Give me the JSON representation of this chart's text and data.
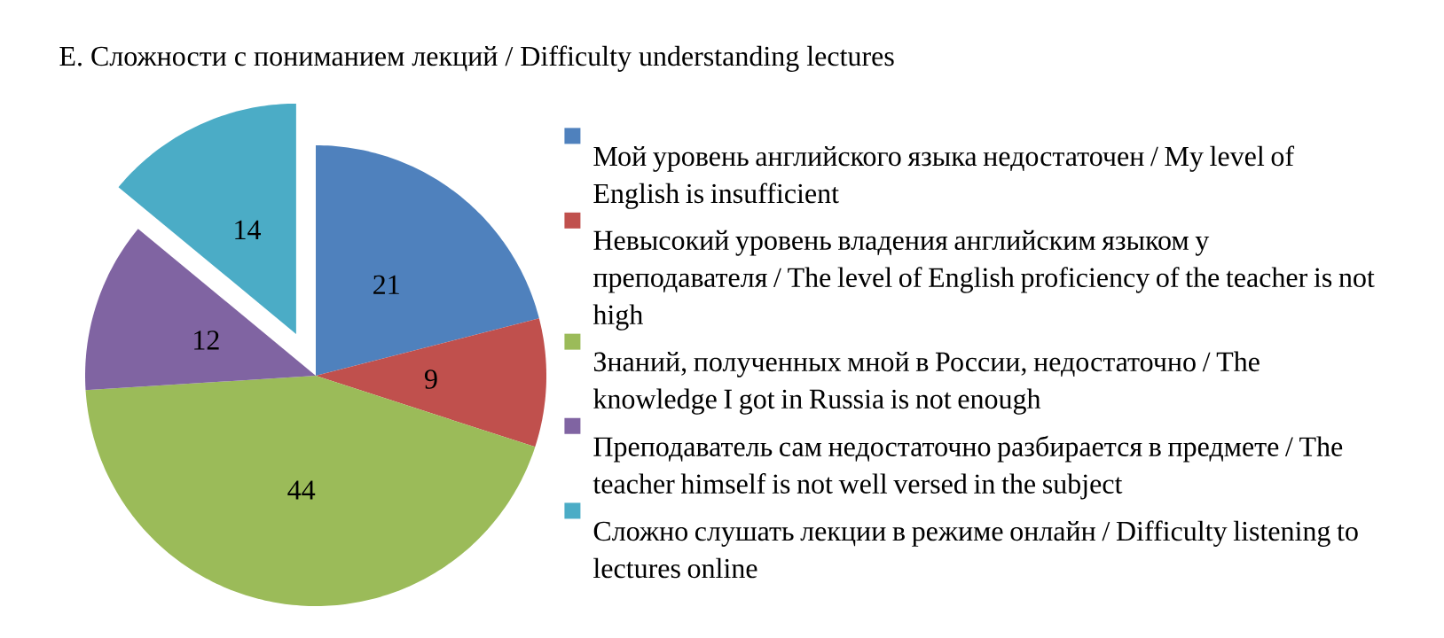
{
  "chart_data": {
    "type": "pie",
    "title": "Е. Сложности с пониманием лекций / Difficulty understanding lectures",
    "categories": [
      "Мой уровень английского языка недостаточен / My level of English is insufficient",
      "Невысокий уровень владения английским языком у преподавателя / The level of English proficiency of the teacher is not high",
      "Знаний, полученных мной в России, недостаточно / The knowledge I got in Russia is not enough",
      "Преподаватель сам недостаточно разбирается в предмете / The teacher himself is not well versed in the subject",
      "Сложно слушать лекции в режиме онлайн / Difficulty listening to lectures online"
    ],
    "values": [
      21,
      9,
      44,
      12,
      14
    ],
    "colors": [
      "#4f81bd",
      "#c0504d",
      "#9bbb59",
      "#8064a2",
      "#4bacc6"
    ],
    "data_labels": true,
    "legend": "right"
  }
}
